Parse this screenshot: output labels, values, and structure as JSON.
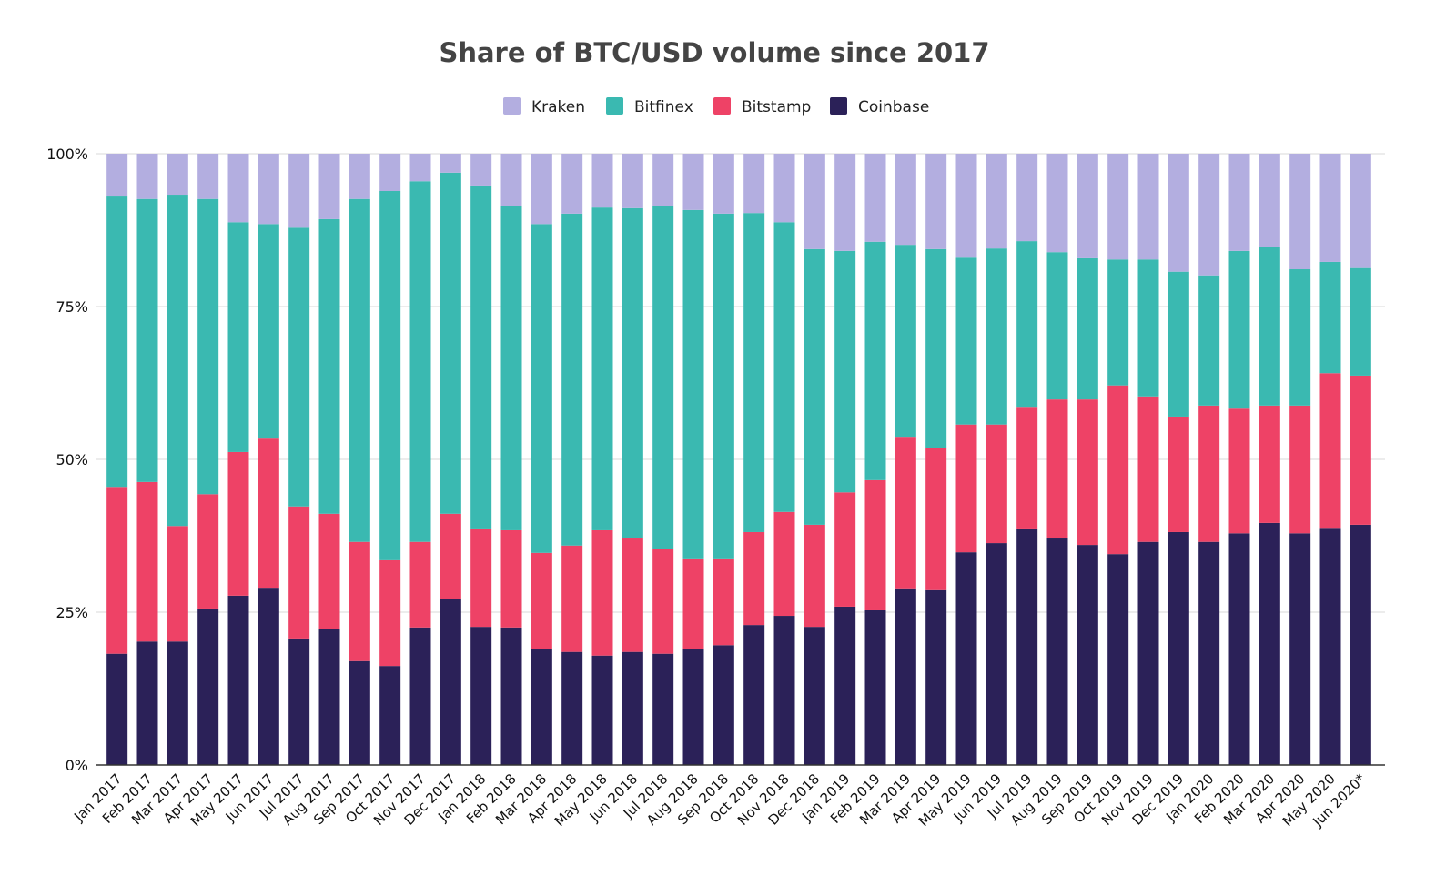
{
  "chart_data": {
    "type": "bar",
    "stacked": true,
    "title": "Share of BTC/USD volume since 2017",
    "xlabel": "",
    "ylabel": "",
    "ylim": [
      0,
      100
    ],
    "y_ticks": [
      "0%",
      "25%",
      "50%",
      "75%",
      "100%"
    ],
    "grid": true,
    "legend_position": "top",
    "categories": [
      "Jan 2017",
      "Feb 2017",
      "Mar 2017",
      "Apr 2017",
      "May 2017",
      "Jun 2017",
      "Jul 2017",
      "Aug 2017",
      "Sep 2017",
      "Oct 2017",
      "Nov 2017",
      "Dec 2017",
      "Jan 2018",
      "Feb 2018",
      "Mar 2018",
      "Apr 2018",
      "May 2018",
      "Jun 2018",
      "Jul 2018",
      "Aug 2018",
      "Sep 2018",
      "Oct 2018",
      "Nov 2018",
      "Dec 2018",
      "Jan 2019",
      "Feb 2019",
      "Mar 2019",
      "Apr 2019",
      "May 2019",
      "Jun 2019",
      "Jul 2019",
      "Aug 2019",
      "Sep 2019",
      "Oct 2019",
      "Nov 2019",
      "Dec 2019",
      "Jan 2020",
      "Feb 2020",
      "Mar 2020",
      "Apr 2020",
      "May 2020",
      "Jun 2020*"
    ],
    "series": [
      {
        "name": "Coinbase",
        "color": "#2b2158",
        "values": [
          18.2,
          20.2,
          20.2,
          25.6,
          27.7,
          29.0,
          20.7,
          22.2,
          17.0,
          16.2,
          22.5,
          27.1,
          22.6,
          22.5,
          19.0,
          18.5,
          17.9,
          18.5,
          18.2,
          18.9,
          19.6,
          22.9,
          24.4,
          22.6,
          25.9,
          25.3,
          28.9,
          28.6,
          34.8,
          36.3,
          38.7,
          37.2,
          36.0,
          34.5,
          36.5,
          38.1,
          36.5,
          37.9,
          39.6,
          37.9,
          38.8,
          39.3
        ]
      },
      {
        "name": "Bitstamp",
        "color": "#ee4266",
        "values": [
          27.3,
          26.1,
          18.9,
          18.7,
          23.5,
          24.4,
          21.6,
          18.9,
          19.5,
          17.3,
          14.0,
          14.0,
          16.1,
          15.9,
          15.7,
          17.4,
          20.5,
          18.7,
          17.1,
          14.9,
          14.2,
          15.2,
          17.0,
          16.7,
          18.7,
          21.3,
          24.8,
          23.2,
          20.9,
          19.4,
          19.9,
          22.6,
          23.8,
          27.6,
          23.8,
          18.9,
          22.3,
          20.4,
          19.2,
          20.9,
          25.3,
          24.4
        ]
      },
      {
        "name": "Bitfinex",
        "color": "#3ab9b1",
        "values": [
          47.5,
          46.3,
          54.2,
          48.3,
          37.6,
          35.1,
          45.6,
          48.2,
          56.1,
          60.4,
          59.0,
          55.8,
          56.1,
          53.1,
          53.8,
          54.3,
          52.8,
          53.9,
          56.2,
          57.0,
          56.4,
          52.2,
          47.4,
          45.1,
          39.5,
          39.0,
          31.4,
          32.6,
          27.3,
          28.8,
          27.1,
          24.1,
          23.1,
          20.6,
          22.4,
          23.7,
          21.3,
          25.8,
          25.9,
          22.3,
          18.2,
          17.6
        ]
      },
      {
        "name": "Kraken",
        "color": "#b3aee0",
        "values": [
          7.0,
          7.4,
          6.7,
          7.4,
          11.2,
          11.5,
          12.1,
          10.7,
          7.4,
          6.1,
          4.5,
          3.1,
          5.2,
          8.5,
          11.5,
          9.8,
          8.8,
          8.9,
          8.5,
          9.2,
          9.8,
          9.7,
          11.2,
          15.6,
          15.9,
          14.4,
          14.9,
          15.6,
          17.0,
          15.5,
          14.3,
          16.1,
          17.1,
          17.3,
          17.3,
          19.3,
          19.9,
          15.9,
          15.3,
          18.9,
          17.7,
          18.7
        ]
      }
    ],
    "legend_order": [
      "Kraken",
      "Bitfinex",
      "Bitstamp",
      "Coinbase"
    ]
  }
}
